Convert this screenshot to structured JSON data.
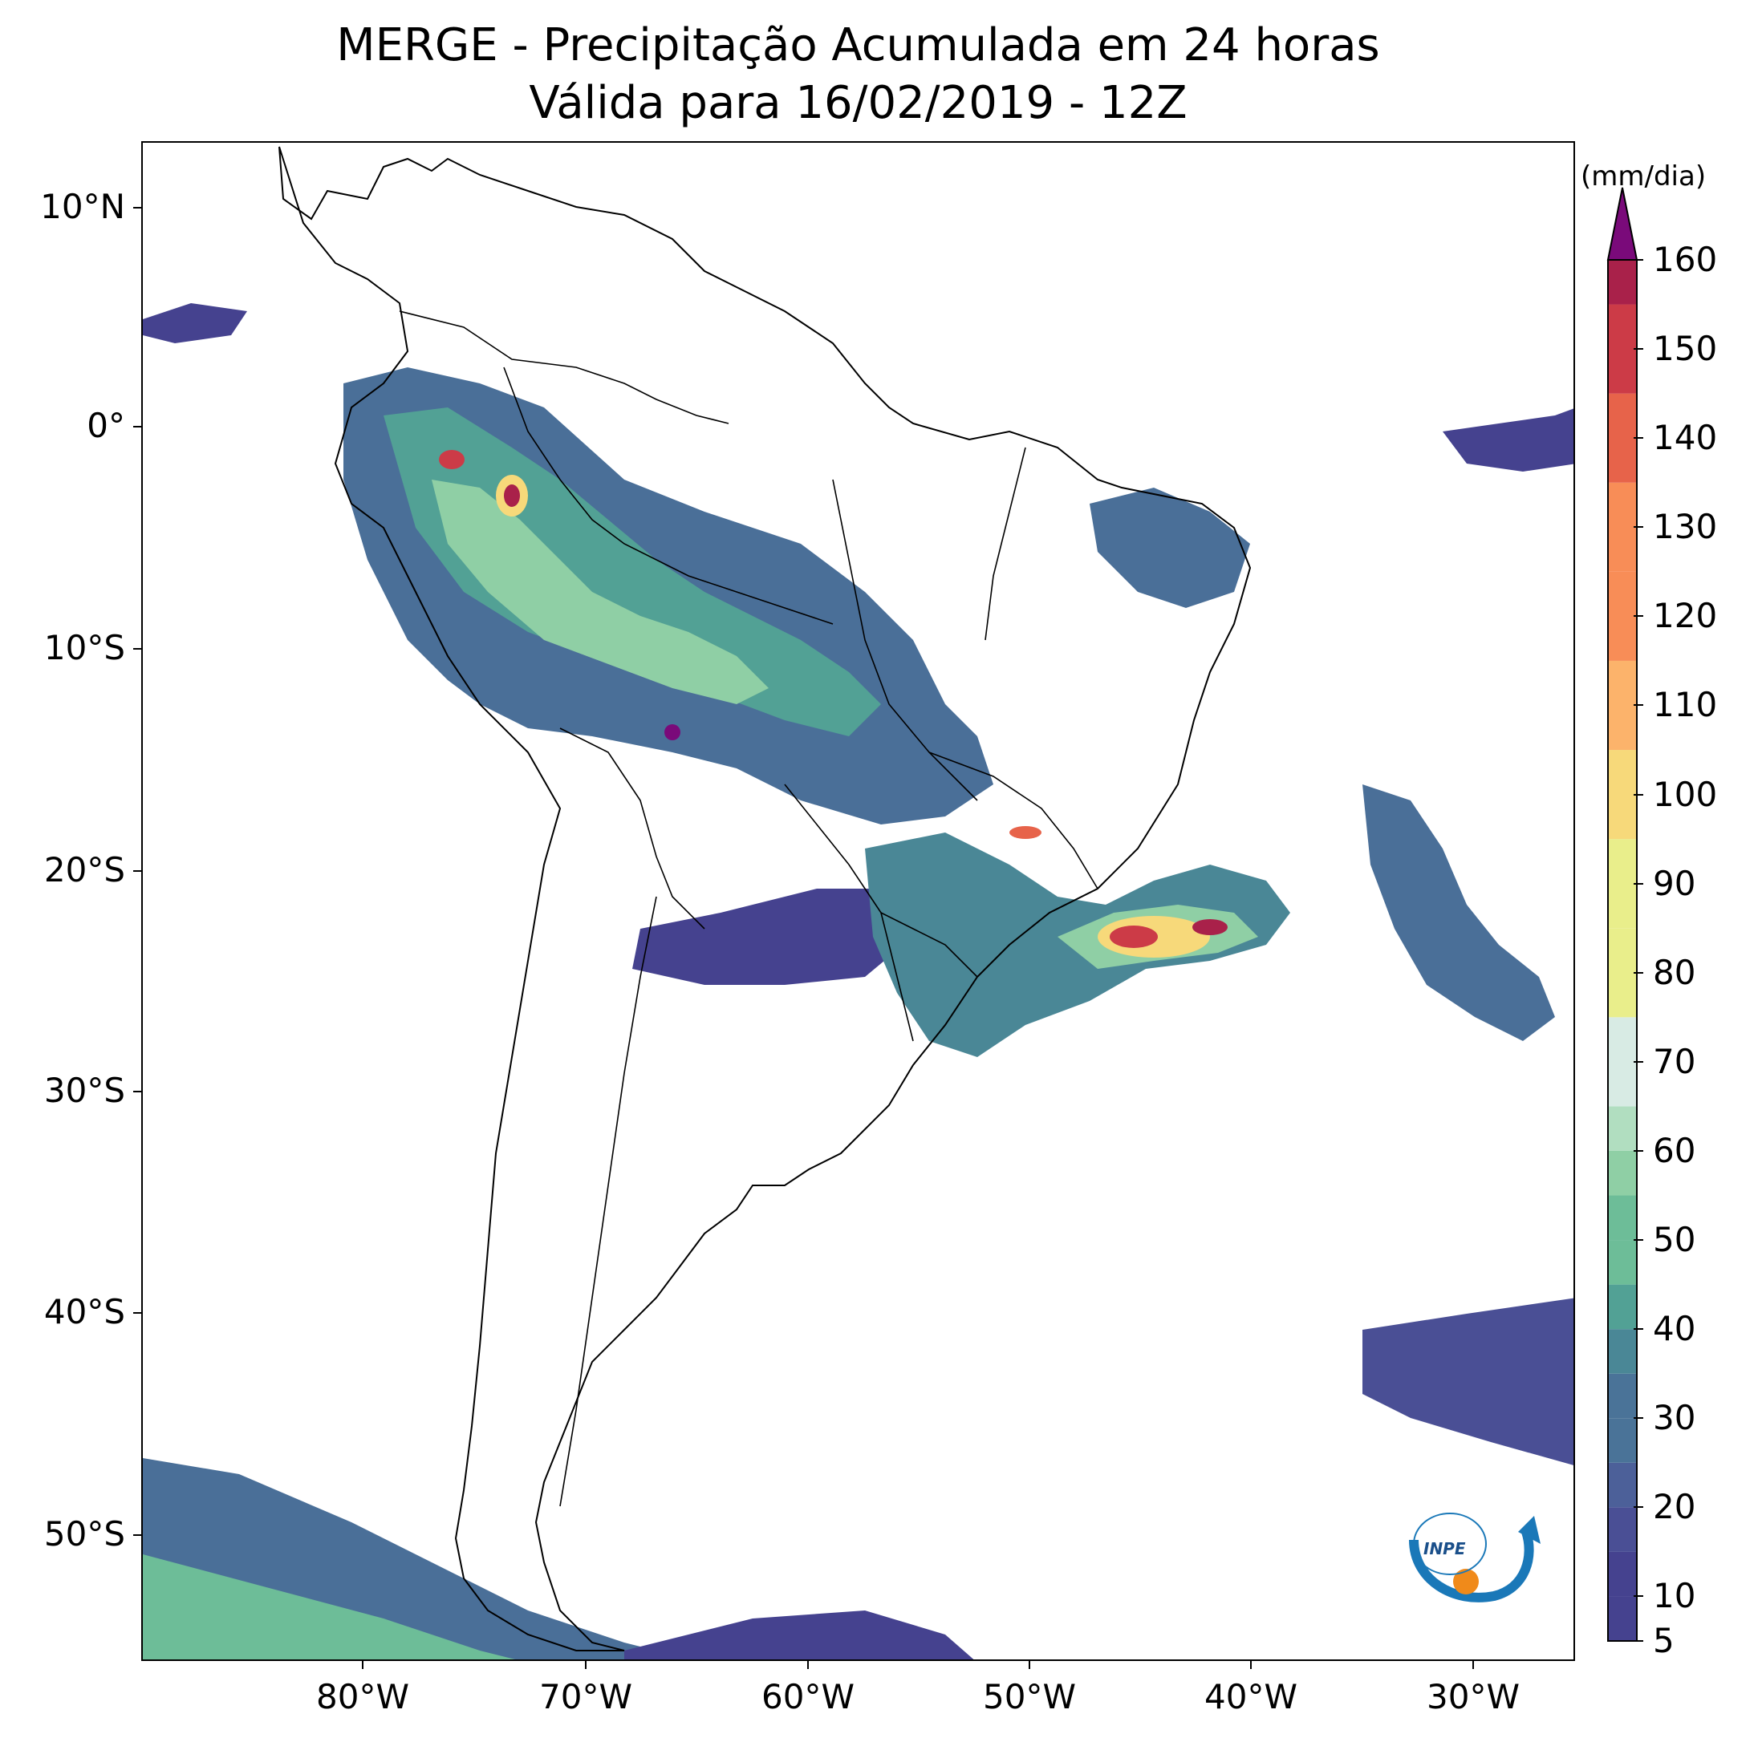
{
  "header": {
    "title_line1": "MERGE - Precipitação Acumulada em 24 horas",
    "title_line2": "Válida para 16/02/2019 - 12Z"
  },
  "map": {
    "region": "South America",
    "lat_labels": [
      "10°N",
      "0°",
      "10°S",
      "20°S",
      "30°S",
      "40°S",
      "50°S"
    ],
    "lon_labels": [
      "80°W",
      "70°W",
      "60°W",
      "50°W",
      "40°W",
      "30°W"
    ],
    "background_color": "#ffffff",
    "coastline_color": "#000000"
  },
  "colorbar": {
    "unit": "(mm/dia)",
    "tick_labels": [
      "5",
      "10",
      "20",
      "30",
      "40",
      "50",
      "60",
      "70",
      "80",
      "90",
      "100",
      "110",
      "120",
      "130",
      "140",
      "150",
      "160"
    ],
    "colors": [
      "#45428f",
      "#4a4f95",
      "#4c6099",
      "#4a7398",
      "#4a8796",
      "#52a195",
      "#6dbd98",
      "#8fcfa5",
      "#b1dec0",
      "#d8ebe4",
      "#e9ee8b",
      "#f7d97a",
      "#fcb36b",
      "#f88d57",
      "#e7634a",
      "#cc3b47",
      "#a9214a",
      "#7a0a7a"
    ],
    "extend_color": "#7a0a7a"
  },
  "logo": {
    "text": "INPE"
  }
}
